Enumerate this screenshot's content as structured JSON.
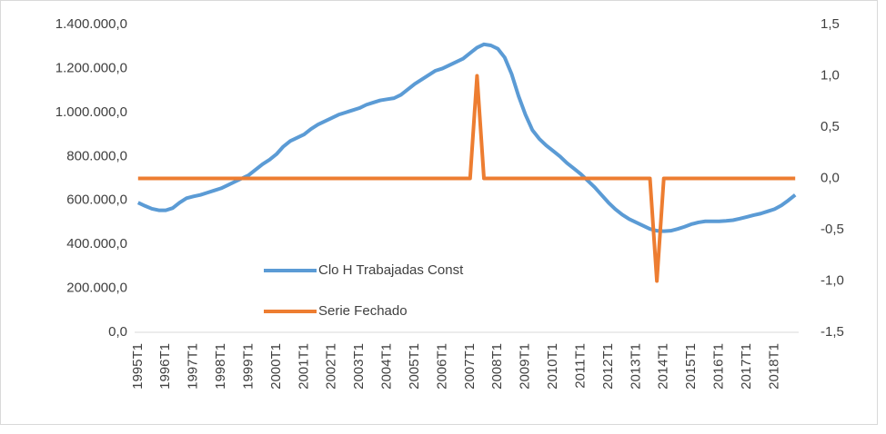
{
  "chart_data": {
    "type": "line",
    "categories": [
      "1995T1",
      null,
      null,
      null,
      "1996T1",
      null,
      null,
      null,
      "1997T1",
      null,
      null,
      null,
      "1998T1",
      null,
      null,
      null,
      "1999T1",
      null,
      null,
      null,
      "2000T1",
      null,
      null,
      null,
      "2001T1",
      null,
      null,
      null,
      "2002T1",
      null,
      null,
      null,
      "2003T1",
      null,
      null,
      null,
      "2004T1",
      null,
      null,
      null,
      "2005T1",
      null,
      null,
      null,
      "2006T1",
      null,
      null,
      null,
      "2007T1",
      null,
      null,
      null,
      "2008T1",
      null,
      null,
      null,
      "2009T1",
      null,
      null,
      null,
      "2010T1",
      null,
      null,
      null,
      "2011T1",
      null,
      null,
      null,
      "2012T1",
      null,
      null,
      null,
      "2013T1",
      null,
      null,
      null,
      "2014T1",
      null,
      null,
      null,
      "2015T1",
      null,
      null,
      null,
      "2016T1",
      null,
      null,
      null,
      "2017T1",
      null,
      null,
      null,
      "2018T1",
      null,
      null,
      null
    ],
    "series": [
      {
        "name": "Clo H Trabajadas Const",
        "color": "#5b9bd5",
        "values": [
          590000,
          575000,
          562000,
          555000,
          555000,
          565000,
          590000,
          610000,
          618000,
          625000,
          635000,
          645000,
          655000,
          670000,
          685000,
          700000,
          715000,
          740000,
          765000,
          785000,
          810000,
          845000,
          870000,
          885000,
          900000,
          925000,
          945000,
          960000,
          975000,
          990000,
          1000000,
          1010000,
          1020000,
          1035000,
          1045000,
          1055000,
          1060000,
          1065000,
          1080000,
          1105000,
          1130000,
          1150000,
          1170000,
          1190000,
          1200000,
          1215000,
          1230000,
          1245000,
          1270000,
          1295000,
          1310000,
          1305000,
          1290000,
          1250000,
          1175000,
          1075000,
          990000,
          920000,
          880000,
          850000,
          825000,
          800000,
          770000,
          745000,
          720000,
          690000,
          660000,
          625000,
          590000,
          560000,
          535000,
          515000,
          500000,
          485000,
          470000,
          462000,
          460000,
          462000,
          470000,
          480000,
          492000,
          500000,
          505000,
          505000,
          505000,
          507000,
          510000,
          517000,
          525000,
          533000,
          540000,
          550000,
          560000,
          577000,
          600000,
          625000
        ]
      },
      {
        "name": "Serie Fechado",
        "color": "#ed7d31",
        "axis": "y2",
        "values": [
          0,
          0,
          0,
          0,
          0,
          0,
          0,
          0,
          0,
          0,
          0,
          0,
          0,
          0,
          0,
          0,
          0,
          0,
          0,
          0,
          0,
          0,
          0,
          0,
          0,
          0,
          0,
          0,
          0,
          0,
          0,
          0,
          0,
          0,
          0,
          0,
          0,
          0,
          0,
          0,
          0,
          0,
          0,
          0,
          0,
          0,
          0,
          0,
          0,
          1,
          0,
          0,
          0,
          0,
          0,
          0,
          0,
          0,
          0,
          0,
          0,
          0,
          0,
          0,
          0,
          0,
          0,
          0,
          0,
          0,
          0,
          0,
          0,
          0,
          0,
          -1,
          0,
          0,
          0,
          0,
          0,
          0,
          0,
          0,
          0,
          0,
          0,
          0,
          0,
          0,
          0,
          0,
          0,
          0,
          0,
          0
        ]
      }
    ],
    "ylim": [
      0,
      1400000
    ],
    "yticks": [
      {
        "value": 0,
        "label": "0,0"
      },
      {
        "value": 200000,
        "label": "200.000,0"
      },
      {
        "value": 400000,
        "label": "400.000,0"
      },
      {
        "value": 600000,
        "label": "600.000,0"
      },
      {
        "value": 800000,
        "label": "800.000,0"
      },
      {
        "value": 1000000,
        "label": "1.000.000,0"
      },
      {
        "value": 1200000,
        "label": "1.200.000,0"
      },
      {
        "value": 1400000,
        "label": "1.400.000,0"
      }
    ],
    "y2lim": [
      -1.5,
      1.5
    ],
    "y2ticks": [
      {
        "value": -1.5,
        "label": "-1,5"
      },
      {
        "value": -1,
        "label": "-1,0"
      },
      {
        "value": -0.5,
        "label": "-0,5"
      },
      {
        "value": 0,
        "label": "0,0"
      },
      {
        "value": 0.5,
        "label": "0,5"
      },
      {
        "value": 1,
        "label": "1,0"
      },
      {
        "value": 1.5,
        "label": "1,5"
      }
    ],
    "grid": false
  }
}
